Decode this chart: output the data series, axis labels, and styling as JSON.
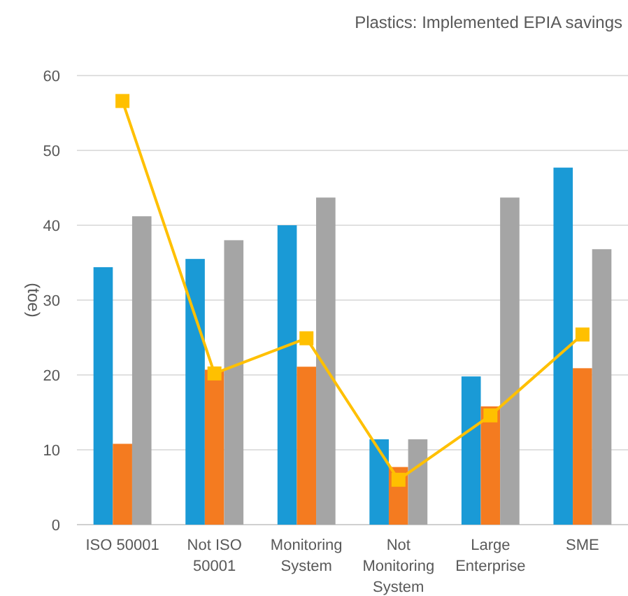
{
  "chart_data": {
    "type": "bar",
    "title": "Plastics: Implemented EPIA savings",
    "ylabel": "(toe)",
    "categories": [
      "ISO 50001",
      "Not ISO 50001",
      "Monitoring System",
      "Not Monitoring System",
      "Large Enterprise",
      "SME"
    ],
    "series": [
      {
        "color": "#1a9ad6",
        "values": [
          34.4,
          35.5,
          40,
          11.4,
          19.8,
          47.7
        ]
      },
      {
        "color": "#f47b20",
        "values": [
          10.8,
          20.7,
          21.1,
          7.7,
          15.8,
          20.9
        ]
      },
      {
        "color": "#a5a5a5",
        "values": [
          41.2,
          38,
          43.7,
          11.4,
          43.7,
          36.8
        ]
      },
      {
        "type": "line",
        "color": "#ffc000",
        "values": [
          56.6,
          20.2,
          24.9,
          6,
          14.6,
          25.4
        ]
      }
    ],
    "ylim": [
      0,
      60
    ],
    "yticks": [
      0,
      10,
      20,
      30,
      40,
      50,
      60
    ],
    "grid": "y",
    "marker": "square"
  }
}
